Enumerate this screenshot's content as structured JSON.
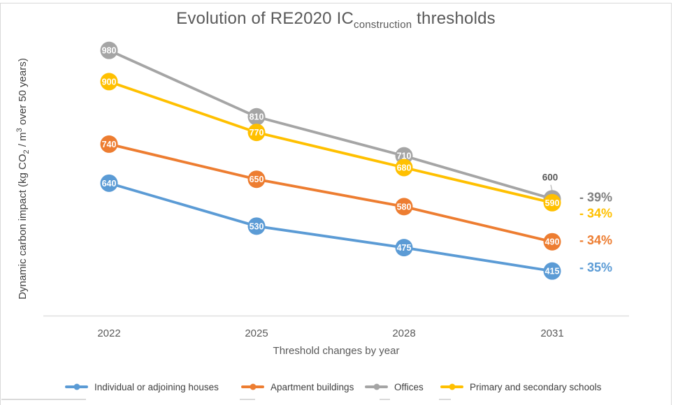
{
  "title": {
    "prefix": "Evolution of RE2020 IC",
    "subscript": "construction",
    "suffix": " thresholds"
  },
  "y_axis": {
    "part1": "Dynamic carbon impact (kg CO",
    "sub": "2",
    "part2": " / m",
    "sup": "3",
    "part3": " over 50 years)"
  },
  "chart_data": {
    "type": "line",
    "title": "Evolution of RE2020 IC construction thresholds",
    "xlabel": "Threshold changes by year",
    "ylabel": "Dynamic carbon impact (kg CO2 / m3 over 50 years)",
    "categories": [
      "2022",
      "2025",
      "2028",
      "2031"
    ],
    "series": [
      {
        "name": "Individual or adjoining houses",
        "color": "#5B9BD5",
        "values": [
          640,
          530,
          475,
          415
        ],
        "change_label": "- 35%",
        "change_label_color": "#5B9BD5",
        "change_label_dy": -5
      },
      {
        "name": "Apartment buildings",
        "color": "#ED7D31",
        "values": [
          740,
          650,
          580,
          490
        ],
        "change_label": "- 34%",
        "change_label_color": "#ED7D31",
        "change_label_dy": -2
      },
      {
        "name": "Offices",
        "color": "#A5A5A5",
        "values": [
          980,
          810,
          710,
          600
        ],
        "change_label": "- 39%",
        "change_label_color": "#7F7F7F",
        "change_label_dy": -2,
        "last_label_position": "above"
      },
      {
        "name": "Primary and secondary schools",
        "color": "#FFC000",
        "values": [
          900,
          770,
          680,
          590
        ],
        "change_label": "- 34%",
        "change_label_color": "#FFC000",
        "change_label_dy": 15
      }
    ],
    "ylim": [
      300,
      1050
    ],
    "grid": false,
    "legend_position": "bottom",
    "data_labels": "inside markers, white",
    "axis_line_color": "#D9D9D9"
  }
}
